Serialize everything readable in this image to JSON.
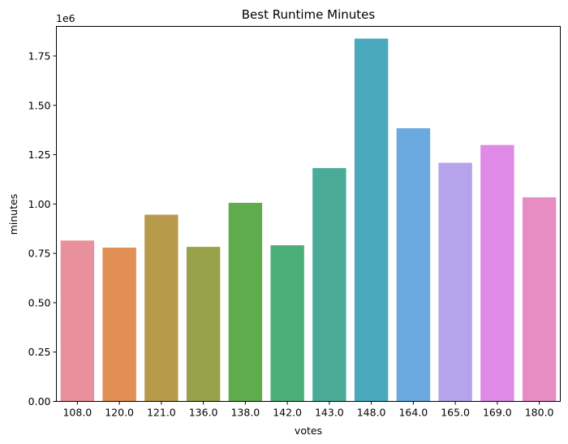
{
  "chart_data": {
    "type": "bar",
    "title": "Best Runtime Minutes",
    "xlabel": "votes",
    "ylabel": "minutes",
    "y_multiplier_label": "1e6",
    "categories": [
      "108.0",
      "120.0",
      "121.0",
      "136.0",
      "138.0",
      "142.0",
      "143.0",
      "148.0",
      "164.0",
      "165.0",
      "169.0",
      "180.0"
    ],
    "values": [
      815000,
      779000,
      946000,
      783000,
      1006000,
      791000,
      1182000,
      1838000,
      1384000,
      1209000,
      1299000,
      1034000
    ],
    "colors": [
      "#e8919c",
      "#e18f55",
      "#b79b4a",
      "#98a24a",
      "#5fac4d",
      "#4cae79",
      "#4aab97",
      "#4ba9bd",
      "#6aaae0",
      "#b5a4eb",
      "#de8ae6",
      "#e88cc4"
    ],
    "ylim": [
      0,
      1900000
    ],
    "yticks": [
      0,
      250000,
      500000,
      750000,
      1000000,
      1250000,
      1500000,
      1750000
    ],
    "ytick_labels": [
      "0.00",
      "0.25",
      "0.50",
      "0.75",
      "1.00",
      "1.25",
      "1.50",
      "1.75"
    ],
    "grid": false,
    "legend": "none"
  }
}
